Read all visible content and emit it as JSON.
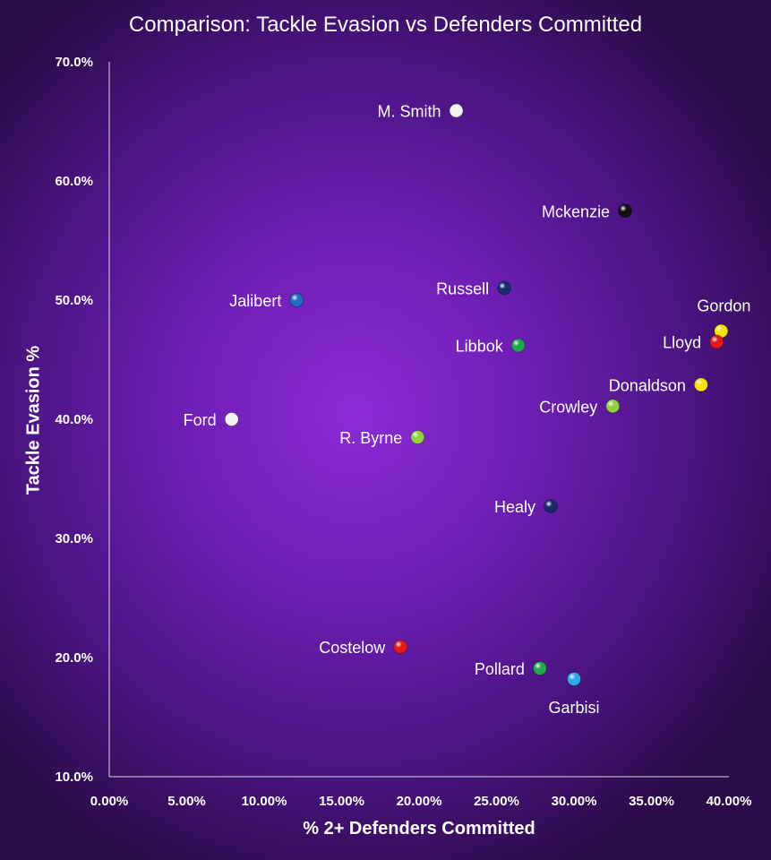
{
  "chart_data": {
    "type": "scatter",
    "title": "Comparison: Tackle Evasion vs Defenders Committed",
    "xlabel": "% 2+ Defenders Committed",
    "ylabel": "Tackle Evasion %",
    "xlim": [
      0,
      40
    ],
    "ylim": [
      10,
      70
    ],
    "x_ticks": [
      "0.00%",
      "5.00%",
      "10.00%",
      "15.00%",
      "20.00%",
      "25.00%",
      "30.00%",
      "35.00%",
      "40.00%"
    ],
    "y_ticks": [
      "10.0%",
      "20.0%",
      "30.0%",
      "40.0%",
      "50.0%",
      "60.0%",
      "70.0%"
    ],
    "grid": false,
    "legend": "none",
    "points": [
      {
        "label": "M. Smith",
        "x": 22.4,
        "y": 65.9,
        "color": "#f2f2f2",
        "label_pos": "left"
      },
      {
        "label": "Mckenzie",
        "x": 33.3,
        "y": 57.5,
        "color": "#111111",
        "label_pos": "left"
      },
      {
        "label": "Russell",
        "x": 25.5,
        "y": 51.0,
        "color": "#1a2a6c",
        "label_pos": "left"
      },
      {
        "label": "Jalibert",
        "x": 12.1,
        "y": 50.0,
        "color": "#1f6fc0",
        "label_pos": "left"
      },
      {
        "label": "Gordon",
        "x": 39.5,
        "y": 47.4,
        "color": "#f5e400",
        "label_pos": "above"
      },
      {
        "label": "Lloyd",
        "x": 39.2,
        "y": 46.5,
        "color": "#e81818",
        "label_pos": "left"
      },
      {
        "label": "Libbok",
        "x": 26.4,
        "y": 46.2,
        "color": "#1faa4a",
        "label_pos": "left"
      },
      {
        "label": "Donaldson",
        "x": 38.2,
        "y": 42.9,
        "color": "#f5e400",
        "label_pos": "left"
      },
      {
        "label": "Crowley",
        "x": 32.5,
        "y": 41.1,
        "color": "#8ed43a",
        "label_pos": "left"
      },
      {
        "label": "Ford",
        "x": 7.9,
        "y": 40.0,
        "color": "#f2f2f2",
        "label_pos": "left"
      },
      {
        "label": "R. Byrne",
        "x": 19.9,
        "y": 38.5,
        "color": "#8ed43a",
        "label_pos": "left"
      },
      {
        "label": "Healy",
        "x": 28.5,
        "y": 32.7,
        "color": "#1a2a6c",
        "label_pos": "left"
      },
      {
        "label": "Costelow",
        "x": 18.8,
        "y": 20.9,
        "color": "#e81818",
        "label_pos": "left"
      },
      {
        "label": "Pollard",
        "x": 27.8,
        "y": 19.1,
        "color": "#1faa4a",
        "label_pos": "left"
      },
      {
        "label": "Garbisi",
        "x": 30.0,
        "y": 18.2,
        "color": "#2aa8e8",
        "label_pos": "below"
      }
    ]
  }
}
